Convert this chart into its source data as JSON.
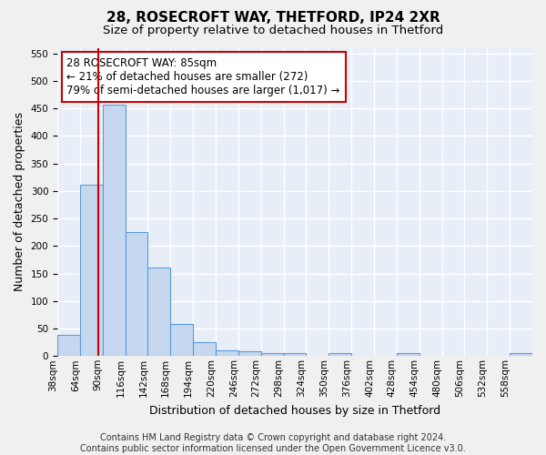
{
  "title": "28, ROSECROFT WAY, THETFORD, IP24 2XR",
  "subtitle": "Size of property relative to detached houses in Thetford",
  "xlabel": "Distribution of detached houses by size in Thetford",
  "ylabel": "Number of detached properties",
  "footer_line1": "Contains HM Land Registry data © Crown copyright and database right 2024.",
  "footer_line2": "Contains public sector information licensed under the Open Government Licence v3.0.",
  "bin_labels": [
    "38sqm",
    "64sqm",
    "90sqm",
    "116sqm",
    "142sqm",
    "168sqm",
    "194sqm",
    "220sqm",
    "246sqm",
    "272sqm",
    "298sqm",
    "324sqm",
    "350sqm",
    "376sqm",
    "402sqm",
    "428sqm",
    "454sqm",
    "480sqm",
    "506sqm",
    "532sqm",
    "558sqm"
  ],
  "bar_values": [
    38,
    311,
    456,
    226,
    160,
    58,
    26,
    11,
    8,
    5,
    5,
    0,
    5,
    0,
    0,
    5,
    0,
    0,
    0,
    0,
    5
  ],
  "bar_color": "#c5d8f0",
  "bar_edge_color": "#5b9bd5",
  "vline_x": 2,
  "vline_color": "#cc0000",
  "annotation_text": "28 ROSECROFT WAY: 85sqm\n← 21% of detached houses are smaller (272)\n79% of semi-detached houses are larger (1,017) →",
  "annotation_box_color": "#ffffff",
  "annotation_box_edge_color": "#cc0000",
  "annotation_fontsize": 8.5,
  "ylim": [
    0,
    560
  ],
  "yticks": [
    0,
    50,
    100,
    150,
    200,
    250,
    300,
    350,
    400,
    450,
    500,
    550
  ],
  "background_color": "#e8eef8",
  "grid_color": "#ffffff",
  "title_fontsize": 11,
  "subtitle_fontsize": 9.5,
  "xlabel_fontsize": 9,
  "ylabel_fontsize": 9,
  "tick_fontsize": 7.5,
  "footer_fontsize": 7
}
